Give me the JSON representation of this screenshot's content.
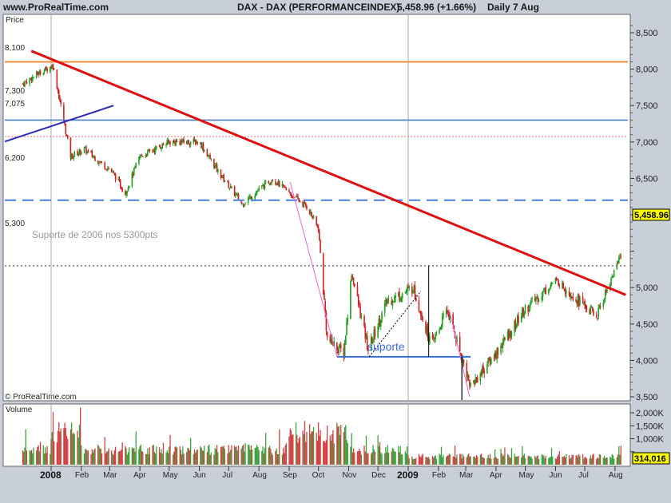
{
  "header": {
    "site": "www.ProRealTime.com",
    "instrument": "DAX - DAX (PERFORMANCEINDEX)",
    "quote": "5,458.96 (+1.66%)",
    "period": "Daily  7 Aug"
  },
  "price_panel_label": "Price",
  "volume_panel_label": "Volume",
  "copyright": "© ProRealTime.com",
  "annotations": {
    "support_2006": "Suporte de 2006 nos 5300pts",
    "support": "suporte"
  },
  "level_labels": [
    "8,100",
    "7,300",
    "7,075",
    "6,200",
    "5,300"
  ],
  "last_price_tag": "5,458.96",
  "last_volume_tag": "314,016",
  "colors": {
    "background": "#c9cfd8",
    "plot": "#ffffff",
    "up": "#22a022",
    "down": "#cc2222",
    "trend": "#dd1111",
    "resistance_8100": "#f08a3c",
    "line_7300": "#4a7fd8",
    "line_7075": "#e07060",
    "line_6200": "#4a7fd8",
    "support_5300": "#555555",
    "support_4050": "#3a6fd0",
    "early_trend": "#2b2bb5",
    "fan_line": "#ee66cc",
    "tag_bg": "#ffff00"
  },
  "chart_data": {
    "type": "candlestick",
    "title": "DAX - DAX (PERFORMANCEINDEX)",
    "x_range": [
      "2007-12",
      "2009-08-07"
    ],
    "x_tick_labels": [
      "2008",
      "Feb",
      "Mar",
      "Apr",
      "May",
      "Jun",
      "Jul",
      "Aug",
      "Sep",
      "Oct",
      "Nov",
      "Dec",
      "2009",
      "Feb",
      "Mar",
      "Apr",
      "May",
      "Jun",
      "Jul",
      "Aug"
    ],
    "price_axis": {
      "ticks": [
        "8,500",
        "8,000",
        "7,500",
        "7,000",
        "6,500",
        "6,000",
        "5,500",
        "5,000",
        "4,500",
        "4,000",
        "3,500"
      ],
      "ylim": [
        3450,
        8700
      ]
    },
    "volume_axis": {
      "ticks": [
        "2,000K",
        "1,500K",
        "1,000K",
        "500,000"
      ],
      "ylim": [
        0,
        2300000
      ]
    },
    "price_path": [
      {
        "date": "2007-12-03",
        "close": 7800
      },
      {
        "date": "2007-12-20",
        "close": 7950
      },
      {
        "date": "2008-01-03",
        "close": 8050
      },
      {
        "date": "2008-01-21",
        "close": 6800
      },
      {
        "date": "2008-02-04",
        "close": 6900
      },
      {
        "date": "2008-03-03",
        "close": 6600
      },
      {
        "date": "2008-03-17",
        "close": 6300
      },
      {
        "date": "2008-04-01",
        "close": 6800
      },
      {
        "date": "2008-05-01",
        "close": 7000
      },
      {
        "date": "2008-06-01",
        "close": 7000
      },
      {
        "date": "2008-06-20",
        "close": 6600
      },
      {
        "date": "2008-07-15",
        "close": 6150
      },
      {
        "date": "2008-08-15",
        "close": 6500
      },
      {
        "date": "2008-09-01",
        "close": 6300
      },
      {
        "date": "2008-09-20",
        "close": 6100
      },
      {
        "date": "2008-10-01",
        "close": 5800
      },
      {
        "date": "2008-10-10",
        "close": 4300
      },
      {
        "date": "2008-10-27",
        "close": 4100
      },
      {
        "date": "2008-11-04",
        "close": 5200
      },
      {
        "date": "2008-11-21",
        "close": 4150
      },
      {
        "date": "2008-12-10",
        "close": 4800
      },
      {
        "date": "2009-01-06",
        "close": 5000
      },
      {
        "date": "2009-01-25",
        "close": 4200
      },
      {
        "date": "2009-02-10",
        "close": 4700
      },
      {
        "date": "2009-03-06",
        "close": 3650
      },
      {
        "date": "2009-04-01",
        "close": 4100
      },
      {
        "date": "2009-05-01",
        "close": 4700
      },
      {
        "date": "2009-06-01",
        "close": 5100
      },
      {
        "date": "2009-06-15",
        "close": 4950
      },
      {
        "date": "2009-07-13",
        "close": 4600
      },
      {
        "date": "2009-08-07",
        "close": 5458.96
      }
    ],
    "volume_profile": "elevated spikes Jan 2008 and Sep–Oct 2008, declining into 2009",
    "horizontal_levels": [
      {
        "label": "8,100",
        "value": 8100
      },
      {
        "label": "7,300",
        "value": 7300
      },
      {
        "label": "7,075",
        "value": 7075
      },
      {
        "label": "6,200",
        "value": 6200
      },
      {
        "label": "5,300",
        "value": 5300
      },
      {
        "label": "suporte",
        "value": 4050
      }
    ],
    "trendline": {
      "from": {
        "date": "2008-01-02",
        "value": 8150
      },
      "to": {
        "date": "2009-08-12",
        "value": 4900
      }
    },
    "last": {
      "value": 5458.96,
      "change": "+1.66%",
      "volume": 314016
    }
  }
}
